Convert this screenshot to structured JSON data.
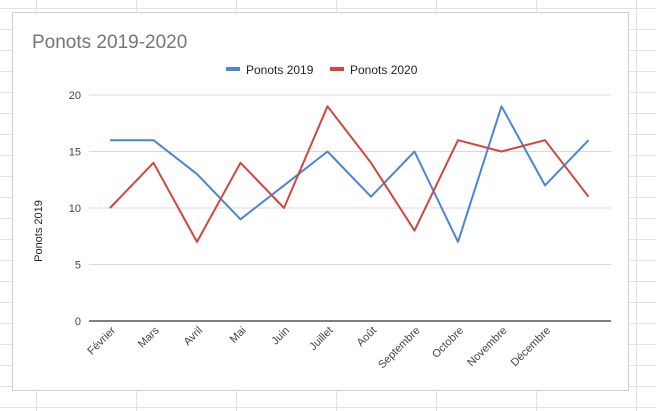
{
  "chart_data": {
    "type": "line",
    "title": "Ponots 2019-2020",
    "ylabel": "Ponots 2019",
    "xlabel": "",
    "ylim": [
      0,
      20
    ],
    "yticks": [
      0,
      5,
      10,
      15,
      20
    ],
    "categories": [
      "Février",
      "Mars",
      "Avril",
      "Mai",
      "Juin",
      "Juillet",
      "Août",
      "Septembre",
      "Octobre",
      "Novembre",
      "Décembre",
      ""
    ],
    "series": [
      {
        "name": "Ponots 2019",
        "color": "#4a86d6",
        "values": [
          16,
          16,
          13,
          9,
          12,
          15,
          11,
          15,
          7,
          19,
          12,
          16
        ]
      },
      {
        "name": "Ponots 2020",
        "color": "#d2463c",
        "values": [
          10,
          14,
          7,
          14,
          10,
          19,
          14,
          8,
          16,
          15,
          16,
          11
        ]
      }
    ],
    "grid": true,
    "legend_position": "top"
  }
}
